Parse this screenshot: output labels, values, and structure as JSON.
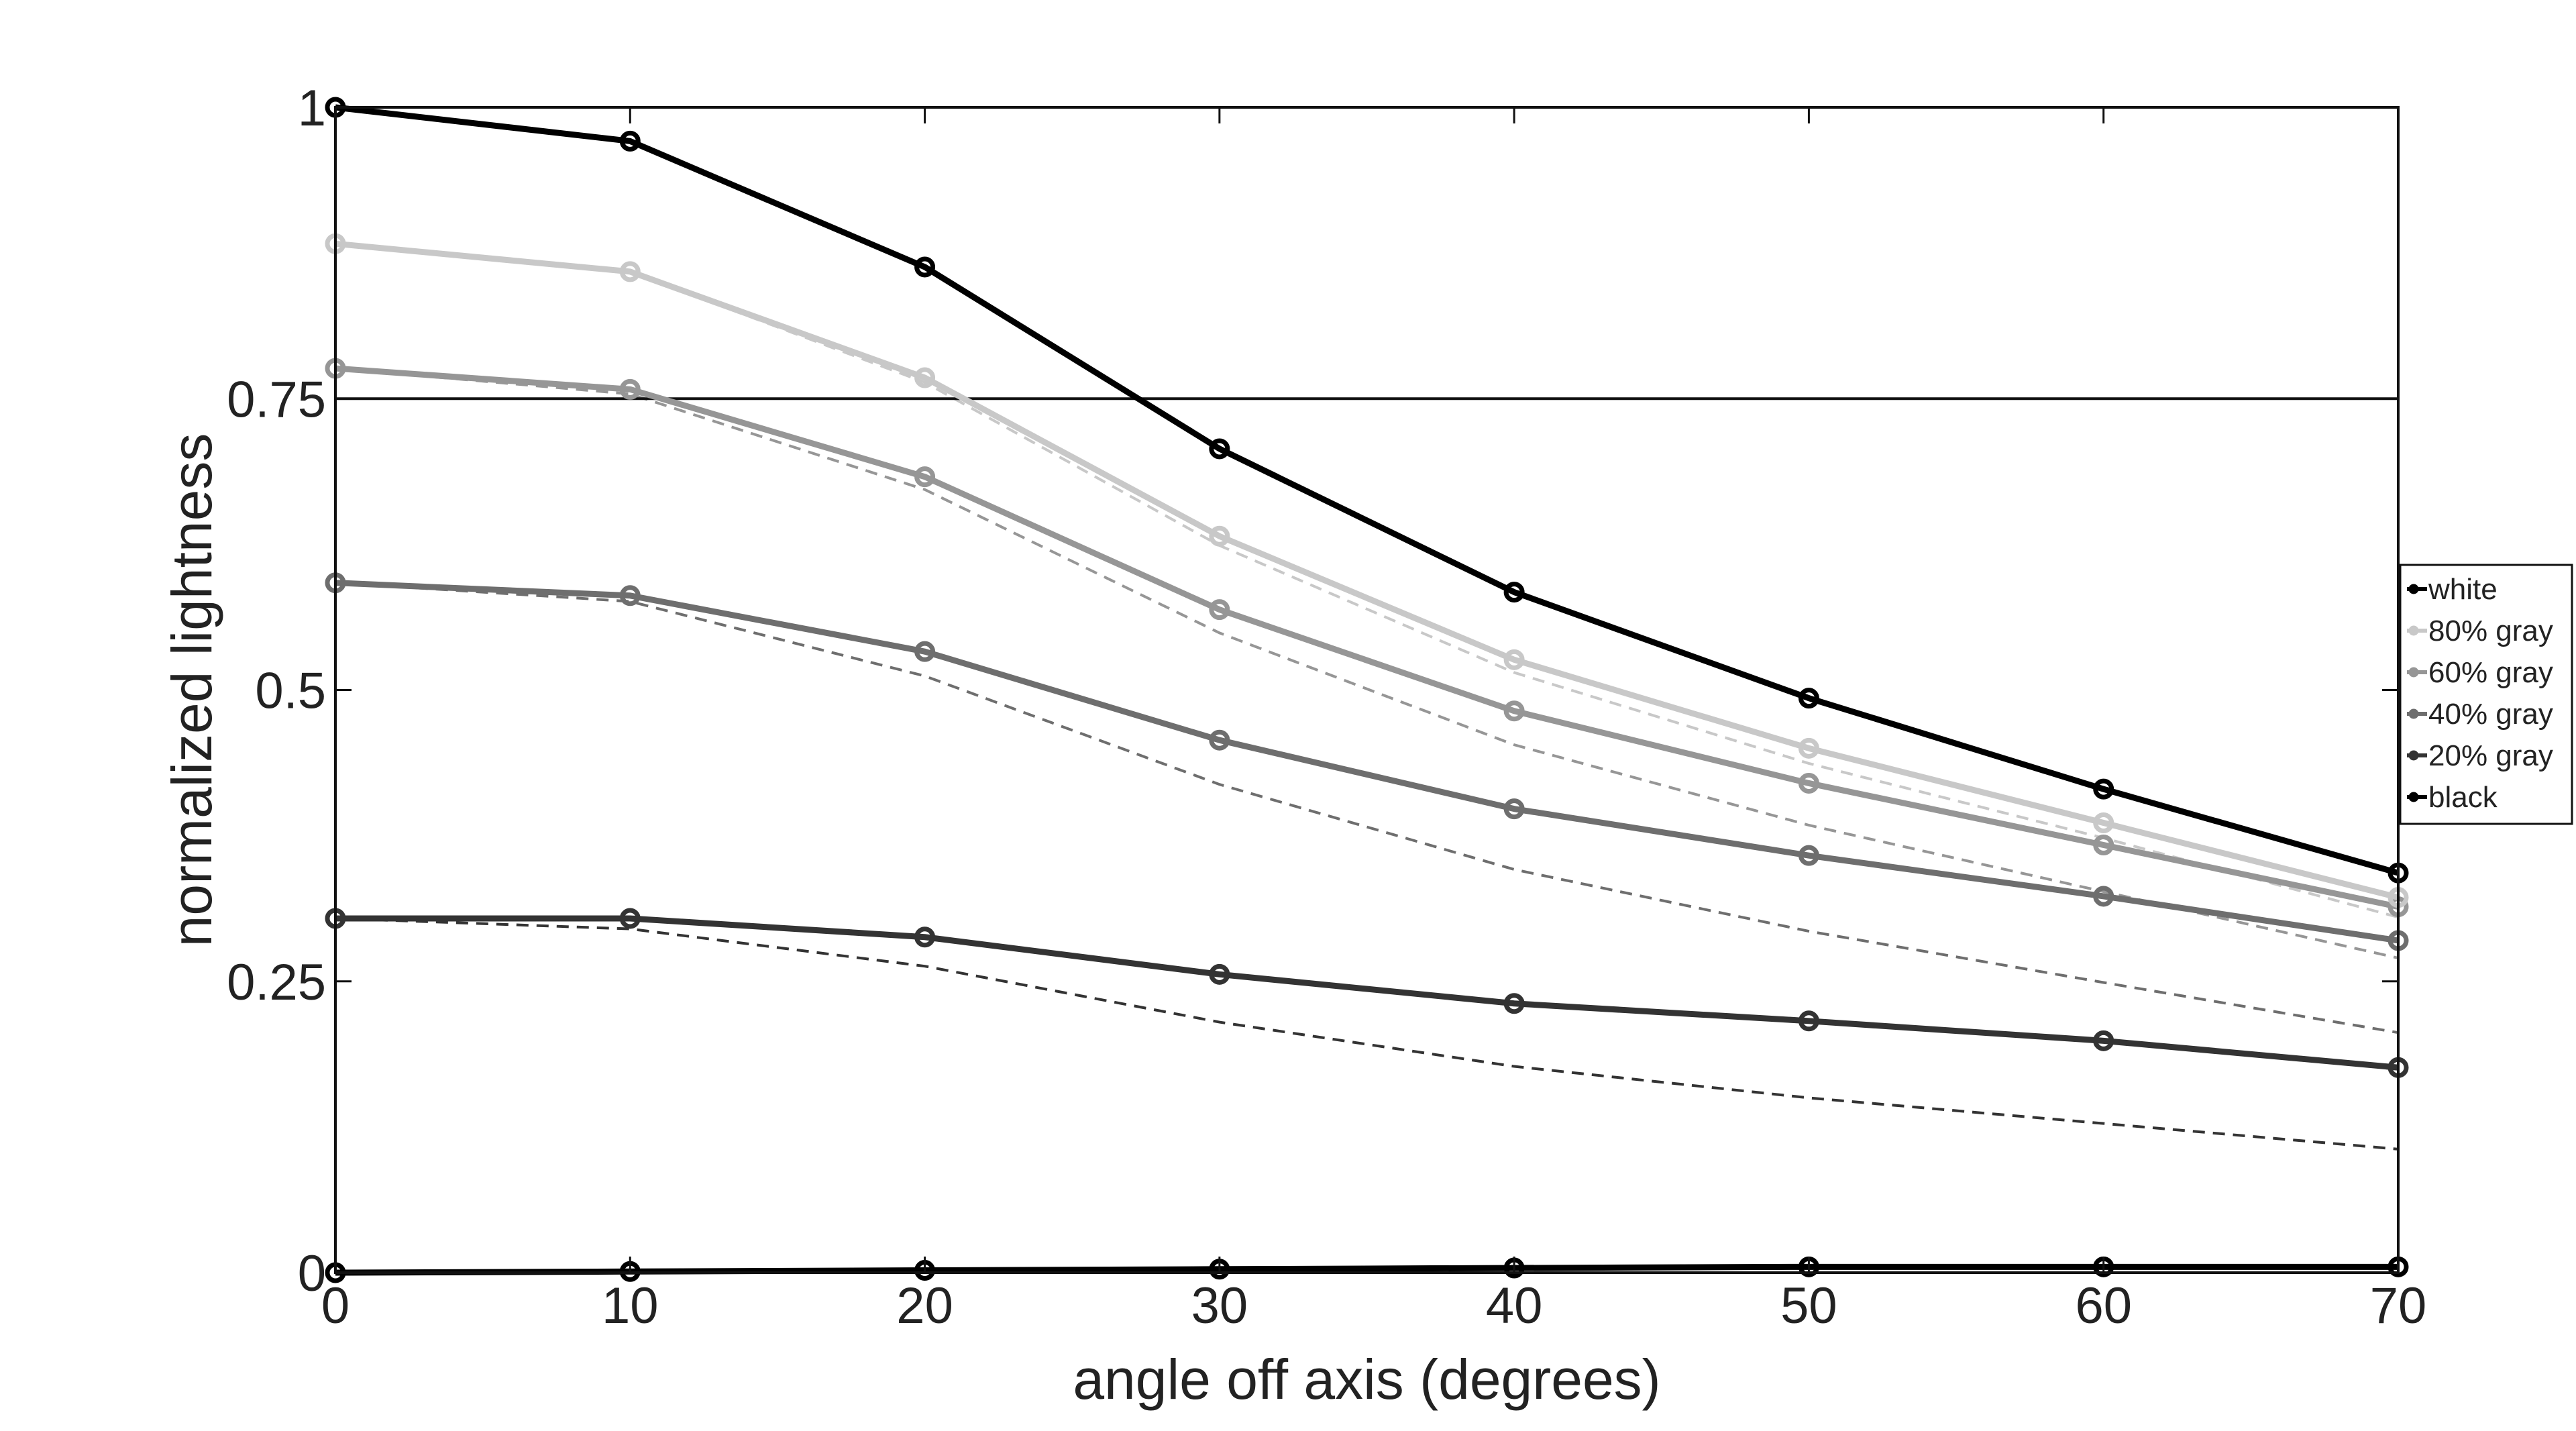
{
  "chart_data": {
    "type": "line",
    "title": "",
    "xlabel": "angle off axis (degrees)",
    "ylabel": "normalized lightness",
    "xlim": [
      0,
      70
    ],
    "ylim": [
      0,
      1
    ],
    "x": [
      0,
      10,
      20,
      30,
      40,
      50,
      60,
      70
    ],
    "xticks": [
      "0",
      "10",
      "20",
      "30",
      "40",
      "50",
      "60",
      "70"
    ],
    "yticks": [
      "0",
      "0.25",
      "0.5",
      "0.75",
      "1"
    ],
    "reference_line": 0.75,
    "grid": false,
    "legend_position": "right",
    "series": [
      {
        "name": "white",
        "color": "#000000",
        "values": [
          1.0,
          0.971,
          0.863,
          0.707,
          0.584,
          0.493,
          0.415,
          0.343
        ]
      },
      {
        "name": "80% gray",
        "color": "#c8c8c8",
        "values": [
          0.883,
          0.859,
          0.768,
          0.632,
          0.526,
          0.45,
          0.386,
          0.322
        ]
      },
      {
        "name": "60% gray",
        "color": "#969696",
        "values": [
          0.776,
          0.758,
          0.683,
          0.569,
          0.482,
          0.42,
          0.367,
          0.314
        ]
      },
      {
        "name": "40% gray",
        "color": "#6e6e6e",
        "values": [
          0.592,
          0.581,
          0.533,
          0.457,
          0.398,
          0.358,
          0.323,
          0.285
        ]
      },
      {
        "name": "20% gray",
        "color": "#333333",
        "values": [
          0.304,
          0.304,
          0.288,
          0.256,
          0.231,
          0.216,
          0.199,
          0.176
        ]
      },
      {
        "name": "black",
        "color": "#000000",
        "values": [
          0.0,
          0.001,
          0.002,
          0.003,
          0.004,
          0.005,
          0.005,
          0.005
        ]
      }
    ],
    "dashed_series": [
      {
        "color": "#c8c8c8",
        "values": [
          0.883,
          0.859,
          0.764,
          0.624,
          0.515,
          0.437,
          0.373,
          0.305
        ]
      },
      {
        "color": "#969696",
        "values": [
          0.776,
          0.754,
          0.672,
          0.549,
          0.453,
          0.384,
          0.327,
          0.27
        ]
      },
      {
        "color": "#6e6e6e",
        "values": [
          0.592,
          0.576,
          0.512,
          0.419,
          0.346,
          0.293,
          0.249,
          0.206
        ]
      },
      {
        "color": "#333333",
        "values": [
          0.304,
          0.295,
          0.263,
          0.215,
          0.177,
          0.15,
          0.128,
          0.106
        ]
      }
    ]
  }
}
